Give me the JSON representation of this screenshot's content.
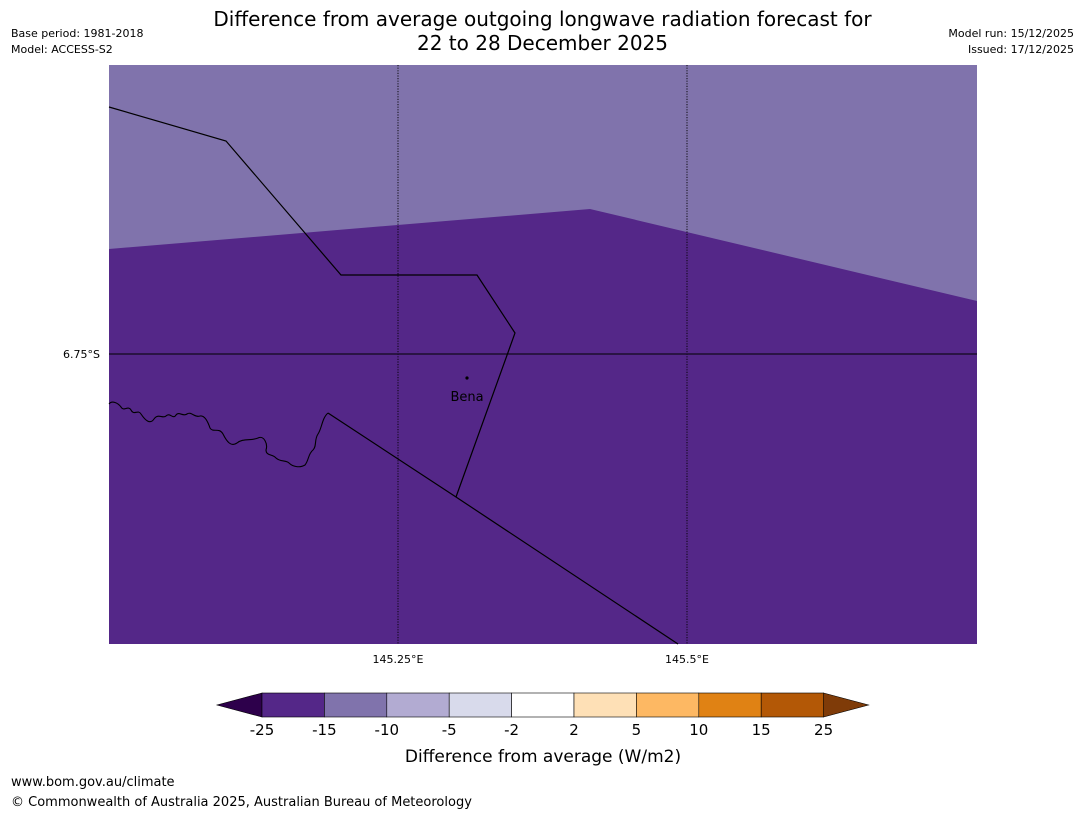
{
  "title": {
    "line1": "Difference from average outgoing longwave radiation forecast for",
    "line2": "22 to 28 December 2025"
  },
  "meta_left": {
    "base_period": "Base period: 1981-2018",
    "model": "Model: ACCESS-S2"
  },
  "meta_right": {
    "model_run": "Model run: 15/12/2025",
    "issued": "Issued: 17/12/2025"
  },
  "map": {
    "lat_label": "6.75°S",
    "lon_labels": [
      "145.25°E",
      "145.5°E"
    ],
    "place_label": "Bena",
    "colors": {
      "upper_region": "#8073ac",
      "lower_region": "#542788",
      "lines": "#000000"
    }
  },
  "legend": {
    "tick_labels": [
      "-25",
      "-15",
      "-10",
      "-5",
      "-2",
      "2",
      "5",
      "10",
      "15",
      "25"
    ],
    "colors": [
      "#542788",
      "#8073ac",
      "#b2abd2",
      "#d8daeb",
      "#ffffff",
      "#fee0b6",
      "#fdb863",
      "#e08214",
      "#b35806"
    ],
    "under_color": "#2d004b",
    "over_color": "#7f3b08",
    "label": "Difference from average (W/m2)"
  },
  "footer": {
    "url": "www.bom.gov.au/climate",
    "copyright": "© Commonwealth of Australia 2025, Australian Bureau of Meteorology"
  }
}
